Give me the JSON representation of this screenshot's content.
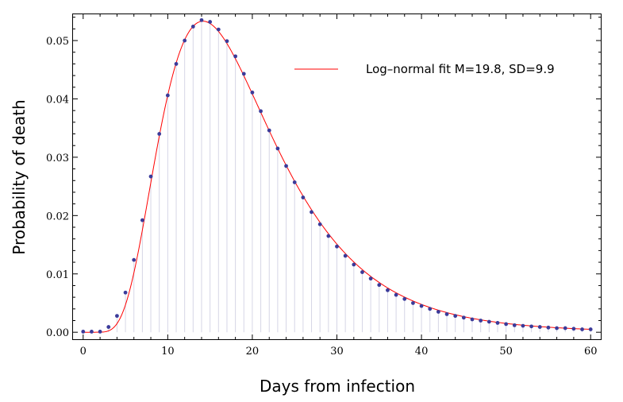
{
  "chart_data": {
    "type": "scatter",
    "title": "",
    "xlabel": "Days from infection",
    "ylabel": "Probability of death",
    "xlim": [
      -1.2,
      61.2
    ],
    "ylim": [
      -0.0012,
      0.0545
    ],
    "x_ticks": [
      0,
      10,
      20,
      30,
      40,
      50,
      60
    ],
    "x_tick_labels": [
      "0",
      "10",
      "20",
      "30",
      "40",
      "50",
      "60"
    ],
    "y_ticks": [
      0,
      0.01,
      0.02,
      0.03,
      0.04,
      0.05
    ],
    "y_tick_labels": [
      "0.00",
      "0.01",
      "0.02",
      "0.03",
      "0.04",
      "0.05"
    ],
    "grid": false,
    "legend_position": "top-right",
    "colors": {
      "points": "#3b3b9a",
      "fit_line": "#ff0000",
      "drop_lines": "#d6d6e6",
      "frame": "#000000"
    },
    "series": [
      {
        "kind": "points",
        "x": [
          0,
          1,
          2,
          3,
          4,
          5,
          6,
          7,
          8,
          9,
          10,
          11,
          12,
          13,
          14,
          15,
          16,
          17,
          18,
          19,
          20,
          21,
          22,
          23,
          24,
          25,
          26,
          27,
          28,
          29,
          30,
          31,
          32,
          33,
          34,
          35,
          36,
          37,
          38,
          39,
          40,
          41,
          42,
          43,
          44,
          45,
          46,
          47,
          48,
          49,
          50,
          51,
          52,
          53,
          54,
          55,
          56,
          57,
          58,
          59,
          60
        ],
        "y": [
          0.0001,
          0.0001,
          0.0001,
          0.0009,
          0.0028,
          0.0068,
          0.0124,
          0.0192,
          0.0267,
          0.034,
          0.0406,
          0.046,
          0.05,
          0.0524,
          0.0535,
          0.0532,
          0.0519,
          0.0499,
          0.0473,
          0.0443,
          0.0411,
          0.0379,
          0.0346,
          0.0315,
          0.0285,
          0.0257,
          0.0231,
          0.0206,
          0.0185,
          0.0165,
          0.0147,
          0.0131,
          0.0116,
          0.0103,
          0.0092,
          0.0081,
          0.0072,
          0.0064,
          0.0057,
          0.005,
          0.0045,
          0.004,
          0.0035,
          0.0031,
          0.0028,
          0.0025,
          0.0022,
          0.002,
          0.0018,
          0.0016,
          0.0014,
          0.0012,
          0.0011,
          0.001,
          0.0009,
          0.0008,
          0.0007,
          0.0007,
          0.0006,
          0.0005,
          0.0005
        ]
      },
      {
        "kind": "line",
        "name": "Log–normal fit M=19.8, SD=9.9",
        "mean": 19.8,
        "sd": 9.9
      }
    ]
  }
}
